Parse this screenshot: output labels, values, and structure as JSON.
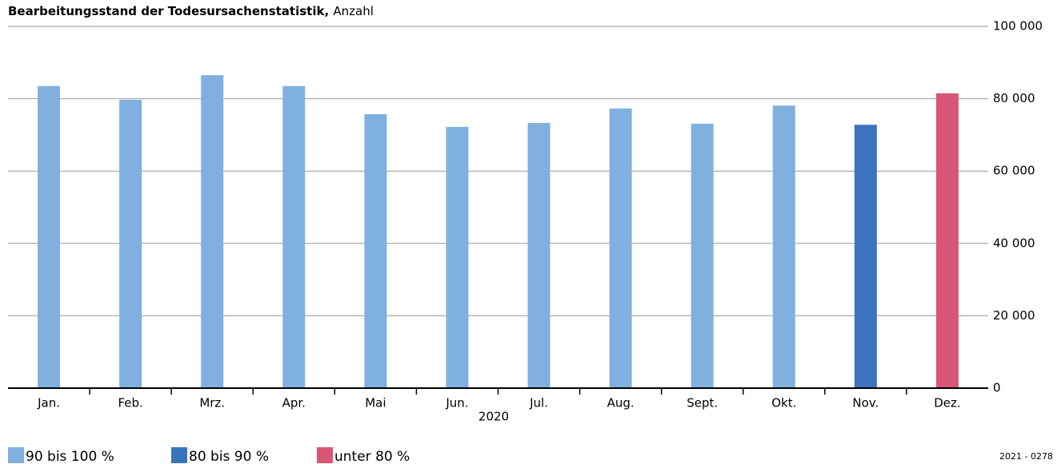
{
  "chart_data": {
    "type": "bar",
    "title": "Bearbeitungsstand der Todesursachenstatistik,",
    "subtitle": "Anzahl",
    "x_label": "2020",
    "source": "2021 - 0278",
    "categories": [
      "Jan.",
      "Feb.",
      "Mrz.",
      "Apr.",
      "Mai",
      "Jun.",
      "Jul.",
      "Aug.",
      "Sept.",
      "Okt.",
      "Nov.",
      "Dez."
    ],
    "series": [
      {
        "name": "90 bis 100 %",
        "color": "#7fb0df",
        "values": [
          83500,
          79700,
          86500,
          83500,
          75700,
          72200,
          73300,
          77300,
          73100,
          78100,
          null,
          null
        ]
      },
      {
        "name": "80 bis 90 %",
        "color": "#3b74bd",
        "values": [
          null,
          null,
          null,
          null,
          null,
          null,
          null,
          null,
          null,
          null,
          72800,
          null
        ]
      },
      {
        "name": "unter 80 %",
        "color": "#d95775",
        "values": [
          null,
          null,
          null,
          null,
          null,
          null,
          null,
          null,
          null,
          null,
          null,
          81500
        ]
      }
    ],
    "ylim": [
      0,
      100000
    ],
    "yticks": [
      0,
      {
        "value": 20000,
        "label": "20 000"
      },
      {
        "value": 40000,
        "label": "40 000"
      },
      {
        "value": 60000,
        "label": "60 000"
      },
      {
        "value": 80000,
        "label": "80 000"
      },
      {
        "value": 100000,
        "label": "100 000"
      }
    ],
    "grid": true
  }
}
